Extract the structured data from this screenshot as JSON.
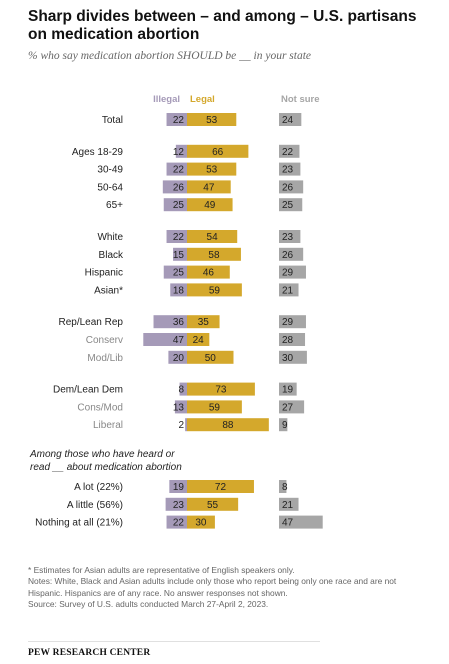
{
  "header": {
    "title": "Sharp divides between – and among – U.S. partisans on medication abortion",
    "subtitle": "% who say medication abortion SHOULD be __ in your state"
  },
  "colors": {
    "illegal": "#a59ab8",
    "legal": "#d4a82c",
    "not_sure": "#a6a6a6",
    "label_main": "#222222",
    "label_sub": "#888888"
  },
  "chart_data": {
    "type": "bar",
    "columns": [
      "Illegal",
      "Legal",
      "Not sure"
    ],
    "groups": [
      {
        "rows": [
          {
            "label": "Total",
            "style": "main",
            "illegal": 22,
            "legal": 53,
            "not_sure": 24
          }
        ]
      },
      {
        "rows": [
          {
            "label": "Ages 18-29",
            "style": "main",
            "illegal": 12,
            "legal": 66,
            "not_sure": 22
          },
          {
            "label": "30-49",
            "style": "main",
            "illegal": 22,
            "legal": 53,
            "not_sure": 23
          },
          {
            "label": "50-64",
            "style": "main",
            "illegal": 26,
            "legal": 47,
            "not_sure": 26
          },
          {
            "label": "65+",
            "style": "main",
            "illegal": 25,
            "legal": 49,
            "not_sure": 25
          }
        ]
      },
      {
        "rows": [
          {
            "label": "White",
            "style": "main",
            "illegal": 22,
            "legal": 54,
            "not_sure": 23
          },
          {
            "label": "Black",
            "style": "main",
            "illegal": 15,
            "legal": 58,
            "not_sure": 26
          },
          {
            "label": "Hispanic",
            "style": "main",
            "illegal": 25,
            "legal": 46,
            "not_sure": 29
          },
          {
            "label": "Asian*",
            "style": "main",
            "illegal": 18,
            "legal": 59,
            "not_sure": 21
          }
        ]
      },
      {
        "rows": [
          {
            "label": "Rep/Lean Rep",
            "style": "main",
            "illegal": 36,
            "legal": 35,
            "not_sure": 29
          },
          {
            "label": "Conserv",
            "style": "sub",
            "illegal": 47,
            "legal": 24,
            "not_sure": 28
          },
          {
            "label": "Mod/Lib",
            "style": "sub",
            "illegal": 20,
            "legal": 50,
            "not_sure": 30
          }
        ]
      },
      {
        "rows": [
          {
            "label": "Dem/Lean Dem",
            "style": "main",
            "illegal": 8,
            "legal": 73,
            "not_sure": 19
          },
          {
            "label": "Cons/Mod",
            "style": "sub",
            "illegal": 13,
            "legal": 59,
            "not_sure": 27
          },
          {
            "label": "Liberal",
            "style": "sub",
            "illegal": 2,
            "legal": 88,
            "not_sure": 9
          }
        ]
      },
      {
        "heading": "Among those who have heard or read __ about medication abortion",
        "rows": [
          {
            "label": "A lot (22%)",
            "style": "main",
            "illegal": 19,
            "legal": 72,
            "not_sure": 8
          },
          {
            "label": "A little (56%)",
            "style": "main",
            "illegal": 23,
            "legal": 55,
            "not_sure": 21
          },
          {
            "label": "Nothing at all (21%)",
            "style": "main",
            "illegal": 22,
            "legal": 30,
            "not_sure": 47
          }
        ]
      }
    ]
  },
  "footnotes": {
    "asian_note": "* Estimates for Asian adults are representative of English speakers only.",
    "race_note": "Notes: White, Black and Asian adults include only those who report being only one race and are not Hispanic. Hispanics are of any race. No answer responses not shown.",
    "source": "Source: Survey of U.S. adults conducted March 27-April 2, 2023."
  },
  "branding": {
    "org": "PEW RESEARCH CENTER"
  }
}
